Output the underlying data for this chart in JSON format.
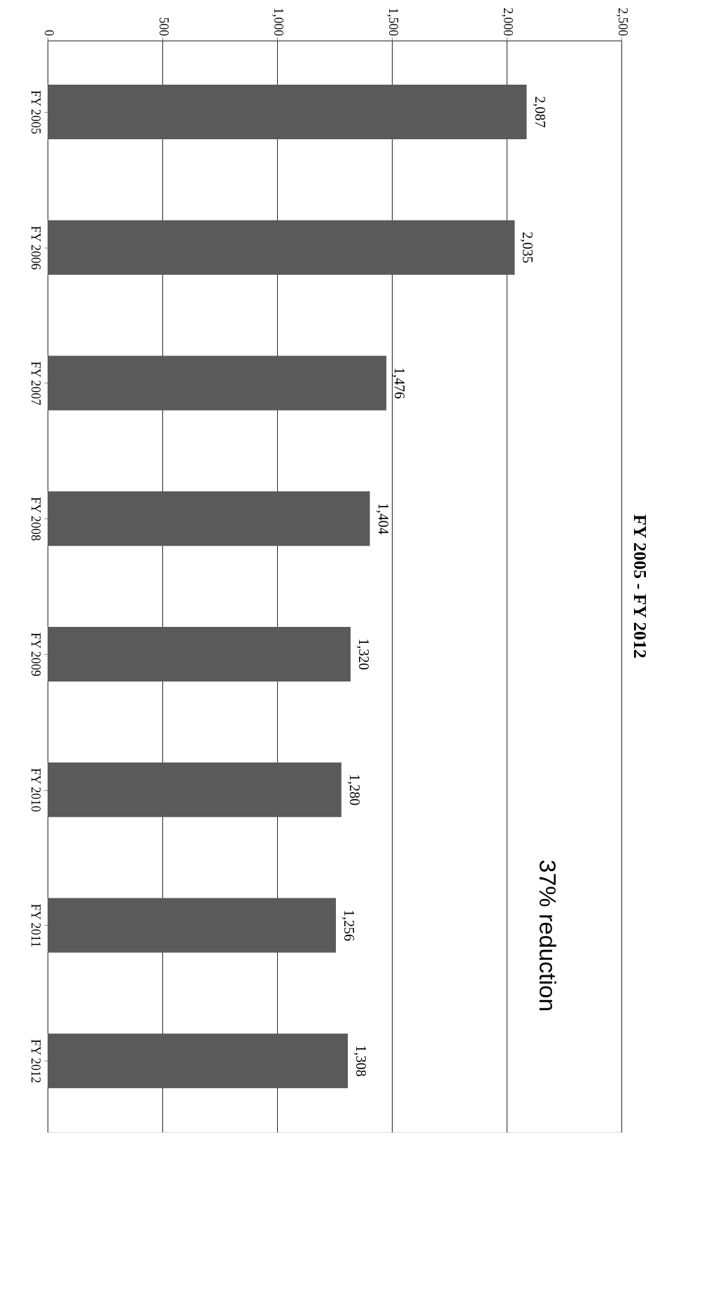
{
  "chart_data": {
    "type": "bar",
    "orientation": "horizontal",
    "title": "FY 2005 - FY 2012",
    "categories": [
      "FY 2005",
      "FY 2006",
      "FY 2007",
      "FY 2008",
      "FY 2009",
      "FY 2010",
      "FY 2011",
      "FY 2012"
    ],
    "values": [
      2087,
      2035,
      1476,
      1404,
      1320,
      1280,
      1256,
      1308
    ],
    "color": "#5a5a5a",
    "xlim": [
      0,
      2500
    ],
    "xticks": [
      0,
      500,
      {
        "value": 1000,
        "label": "1,000"
      },
      {
        "value": 1500,
        "label": "1,500"
      },
      {
        "value": 2000,
        "label": "2,000"
      },
      {
        "value": 2500,
        "label": "2,500"
      }
    ],
    "grid": "x",
    "value_labels": [
      "2,087",
      "2,035",
      "1,476",
      "1,404",
      "1,320",
      "1,280",
      "1,256",
      "1,308"
    ],
    "annotations": [
      "37% reduction"
    ]
  }
}
